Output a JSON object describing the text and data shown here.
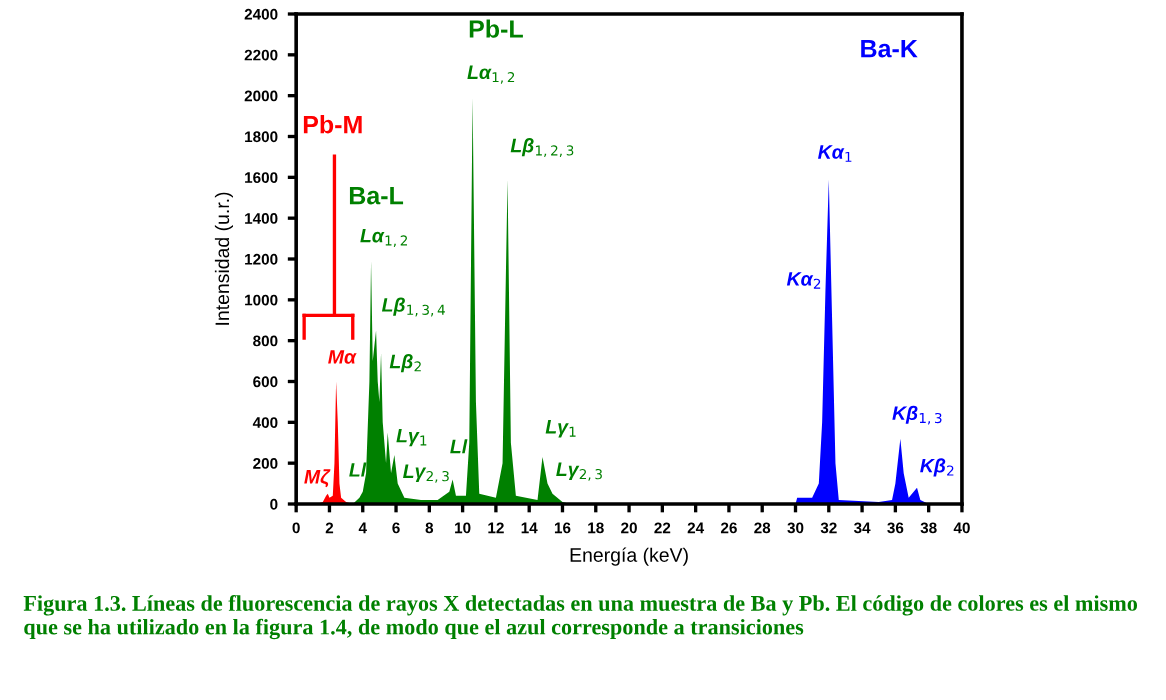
{
  "chart_data": {
    "type": "area",
    "xlabel": "Energía (keV)",
    "ylabel": "Intensidad (u.r.)",
    "xlim": [
      0,
      40
    ],
    "xticks": [
      0,
      2,
      4,
      6,
      8,
      10,
      12,
      14,
      16,
      18,
      20,
      22,
      24,
      26,
      28,
      30,
      32,
      34,
      36,
      38,
      40
    ],
    "ylim": [
      0,
      2400
    ],
    "yticks": [
      0,
      200,
      400,
      600,
      800,
      1000,
      1200,
      1400,
      1600,
      1800,
      2000,
      2200,
      2400
    ],
    "series": [
      {
        "color": "#ff0000",
        "x": [
          1.2,
          1.6,
          1.8,
          1.9,
          2.0,
          2.2,
          2.3,
          2.4,
          2.5,
          2.6,
          2.7,
          3.0,
          3.4
        ],
        "values": [
          0,
          10,
          40,
          50,
          30,
          40,
          200,
          600,
          400,
          100,
          30,
          10,
          0
        ]
      },
      {
        "color": "#008000",
        "x": [
          3.4,
          3.8,
          4.0,
          4.2,
          4.4,
          4.5,
          4.6,
          4.8,
          4.9,
          5.0,
          5.1,
          5.2,
          5.4,
          5.5,
          5.7,
          5.9,
          6.1,
          6.5,
          7.5,
          8.5,
          9.2,
          9.4,
          9.6,
          10.2,
          10.4,
          10.6,
          10.8,
          11.0,
          12.0,
          12.4,
          12.7,
          12.9,
          13.2,
          14.5,
          14.8,
          15.1,
          15.4,
          16.0,
          16.5
        ],
        "values": [
          0,
          30,
          60,
          150,
          600,
          1190,
          700,
          850,
          600,
          500,
          740,
          400,
          200,
          350,
          150,
          240,
          100,
          30,
          20,
          20,
          60,
          120,
          40,
          40,
          300,
          1990,
          500,
          50,
          30,
          200,
          1590,
          300,
          40,
          20,
          230,
          100,
          50,
          10,
          0
        ]
      },
      {
        "color": "#0000ff",
        "x": [
          30.0,
          30.1,
          31.0,
          31.4,
          31.6,
          31.8,
          32.0,
          32.2,
          32.4,
          32.6,
          35.0,
          35.8,
          36.0,
          36.3,
          36.5,
          36.8,
          37.1,
          37.3,
          37.5,
          38.0
        ],
        "values": [
          0,
          30,
          30,
          100,
          400,
          1050,
          1590,
          900,
          200,
          20,
          10,
          20,
          100,
          320,
          150,
          30,
          60,
          80,
          20,
          0
        ]
      }
    ],
    "annotations": [
      "Pb-M",
      "Pb-L",
      "Ba-L",
      "Ba-K",
      {
        "text": "Mα",
        "x": 2.4,
        "y": 600
      },
      {
        "text": "Mζ",
        "x": 1.8,
        "y": 40
      },
      {
        "text": "Lα$_{1,2}$",
        "x": 4.5,
        "y": 1190
      },
      {
        "text": "Lβ$_{1,3,4}$",
        "x": 4.8,
        "y": 850
      },
      {
        "text": "Lβ$_{2}$",
        "x": 5.1,
        "y": 740
      },
      {
        "text": "Lγ$_{1}$",
        "x": 5.5,
        "y": 350
      },
      {
        "text": "Lγ$_{2,3}$",
        "x": 5.9,
        "y": 240
      },
      {
        "text": "Ll",
        "x": 4.0,
        "y": 60
      },
      {
        "text": "Ll",
        "x": 9.4,
        "y": 120
      },
      {
        "text": "Lα$_{1,2}$",
        "x": 10.6,
        "y": 1990
      },
      {
        "text": "Lβ$_{1,2,3}$",
        "x": 12.7,
        "y": 1590
      },
      {
        "text": "Lγ$_{1}$",
        "x": 14.8,
        "y": 230
      },
      {
        "text": "Lγ$_{2,3}$",
        "x": 15.1,
        "y": 100
      },
      {
        "text": "Kα$_{1}$",
        "x": 32.0,
        "y": 1590
      },
      {
        "text": "Kα$_{2}$",
        "x": 31.8,
        "y": 1050
      },
      {
        "text": "Kβ$_{1,3}$",
        "x": 36.3,
        "y": 320
      },
      {
        "text": "Kβ$_{2}$",
        "x": 37.3,
        "y": 80
      },
      "Figura 1.3. Líneas de fluorescencia de rayos X detectadas en una muestra de Ba y Pb. El código de colores es el mismo que se ha utilizado en la figura 1.4, de modo que el azul corresponde a transiciones"
    ]
  }
}
